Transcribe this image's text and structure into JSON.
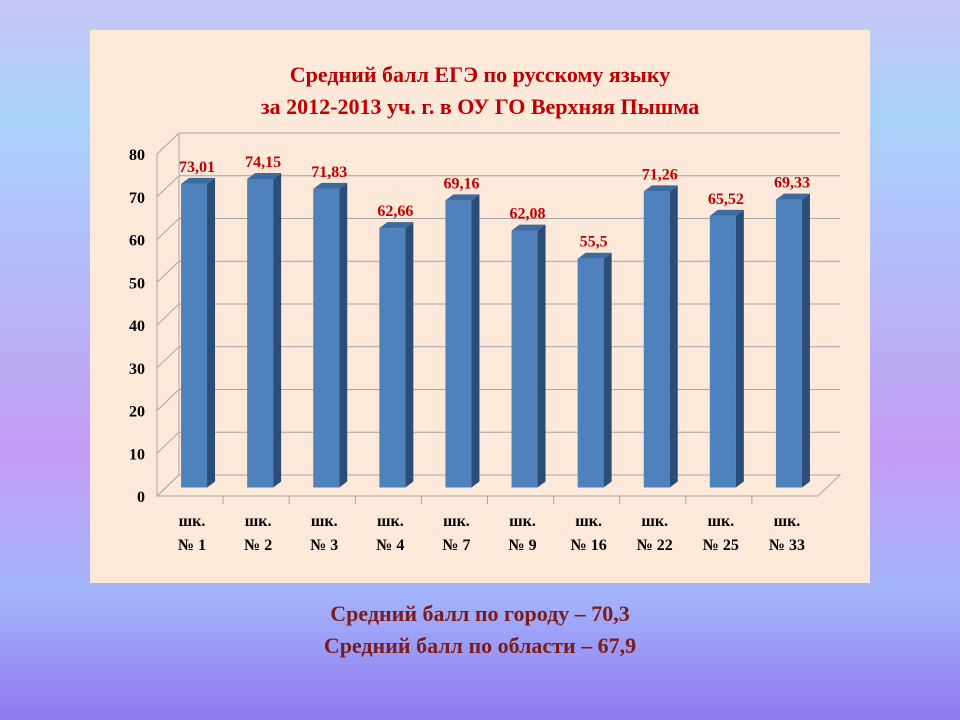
{
  "chart_data": {
    "type": "bar",
    "title": [
      "Средний балл ЕГЭ по русскому языку",
      "за 2012-2013 уч. г. в ОУ ГО Верхняя Пышма"
    ],
    "categories": [
      [
        "шк.",
        "№ 1"
      ],
      [
        "шк.",
        "№ 2"
      ],
      [
        "шк.",
        "№ 3"
      ],
      [
        "шк.",
        "№ 4"
      ],
      [
        "шк.",
        "№ 7"
      ],
      [
        "шк.",
        "№ 9"
      ],
      [
        "шк.",
        "№ 16"
      ],
      [
        "шк.",
        "№ 22"
      ],
      [
        "шк.",
        "№ 25"
      ],
      [
        "шк.",
        "№ 33"
      ]
    ],
    "values": [
      73.01,
      74.15,
      71.83,
      62.66,
      69.16,
      62.08,
      55.5,
      71.26,
      65.52,
      69.33
    ],
    "value_labels": [
      "73,01",
      "74,15",
      "71,83",
      "62,66",
      "69,16",
      "62,08",
      "55,5",
      "71,26",
      "65,52",
      "69,33"
    ],
    "ylim": [
      0,
      80
    ],
    "yticks": [
      0,
      10,
      20,
      30,
      40,
      50,
      60,
      70,
      80
    ],
    "grid": true,
    "legend": "none",
    "colors": {
      "bar_front": "#4f81bd",
      "bar_side": "#2c4d75",
      "bar_top": "#3d6aa0",
      "data_label": "#c00000",
      "axis_text": "#000000",
      "grid": "#a6a6a6"
    }
  },
  "footer": {
    "city": "Средний балл по городу – 70,3",
    "region": "Средний балл по области – 67,9"
  }
}
